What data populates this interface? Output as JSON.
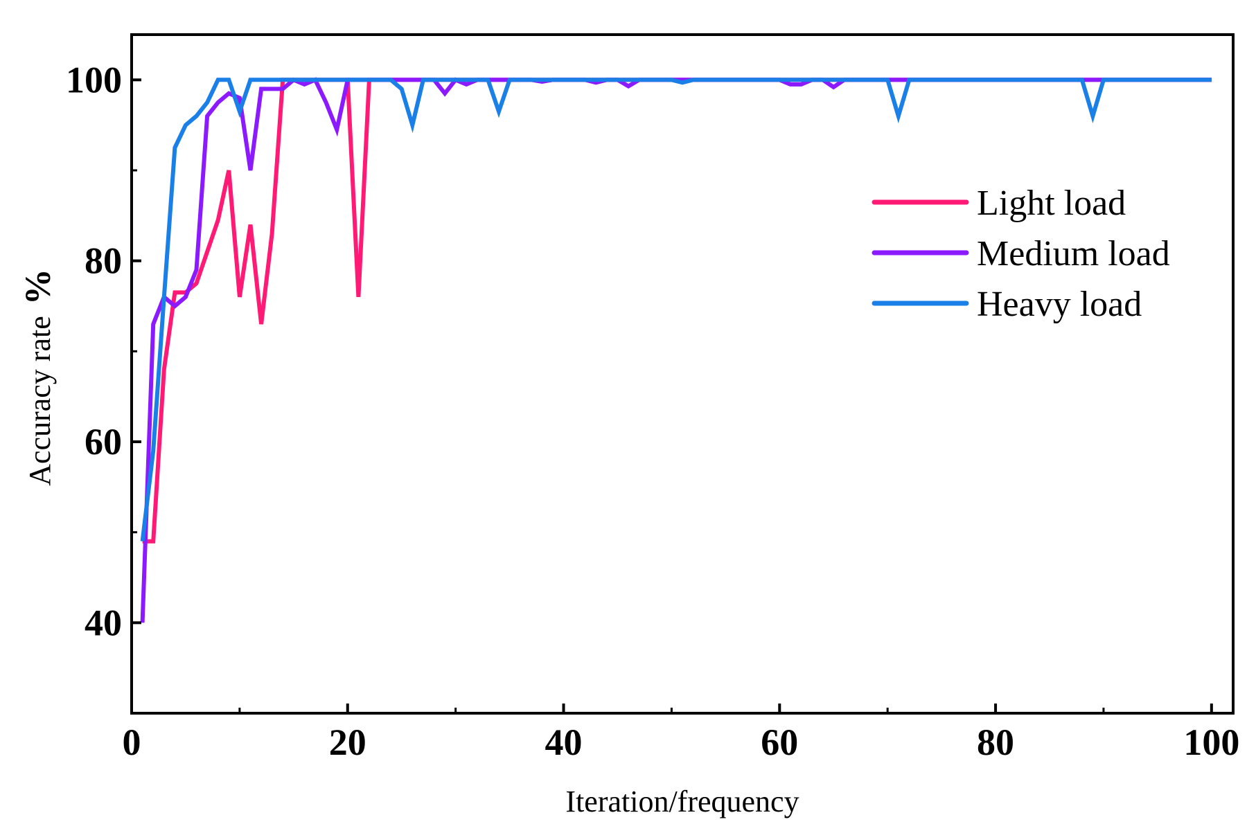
{
  "chart_data": {
    "type": "line",
    "title": "",
    "xlabel": "Iteration/frequency",
    "ylabel": "Accuracy rate",
    "ylabel_unit": "%",
    "xlim": [
      0,
      102
    ],
    "ylim": [
      30,
      105
    ],
    "xticks": [
      0,
      20,
      40,
      60,
      80,
      100
    ],
    "yticks": [
      40,
      60,
      80,
      100
    ],
    "legend_position": "right",
    "series": [
      {
        "name": "Light load",
        "color": "#ff1a75",
        "x": [
          1,
          2,
          3,
          4,
          5,
          6,
          7,
          8,
          9,
          10,
          11,
          12,
          13,
          14,
          15,
          16,
          17,
          18,
          19,
          20,
          21,
          22,
          23,
          24,
          25,
          26,
          27,
          28,
          29,
          30,
          31,
          32,
          33,
          34,
          35,
          36,
          37,
          38,
          39,
          40,
          41,
          42,
          43,
          44,
          45,
          46,
          47,
          48,
          49,
          50,
          51,
          52,
          53,
          54,
          55,
          56,
          57,
          58,
          59,
          60,
          61,
          62,
          63,
          64,
          65,
          66,
          67,
          68,
          69,
          70,
          71,
          72,
          73,
          74,
          75,
          76,
          77,
          78,
          79,
          80,
          81,
          82,
          83,
          84,
          85,
          86,
          87,
          88,
          89,
          90,
          91,
          92,
          93,
          94,
          95,
          96,
          97,
          98,
          99,
          100
        ],
        "y": [
          49,
          49,
          68,
          76.5,
          76.5,
          77.5,
          81,
          84.5,
          90,
          76,
          84,
          73,
          83,
          100,
          100,
          100,
          100,
          100,
          100,
          100,
          76,
          100,
          100,
          100,
          100,
          100,
          100,
          100,
          100,
          100,
          100,
          100,
          100,
          100,
          100,
          100,
          100,
          100,
          100,
          100,
          100,
          100,
          100,
          100,
          100,
          100,
          100,
          100,
          100,
          100,
          100,
          100,
          100,
          100,
          100,
          100,
          100,
          100,
          100,
          100,
          100,
          100,
          100,
          100,
          100,
          100,
          100,
          100,
          100,
          100,
          100,
          100,
          100,
          100,
          100,
          100,
          100,
          100,
          100,
          100,
          100,
          100,
          100,
          100,
          100,
          100,
          100,
          100,
          100,
          100,
          100,
          100,
          100,
          100,
          100,
          100,
          100,
          100,
          100,
          100
        ]
      },
      {
        "name": "Medium load",
        "color": "#8c1aff",
        "x": [
          1,
          2,
          3,
          4,
          5,
          6,
          7,
          8,
          9,
          10,
          11,
          12,
          13,
          14,
          15,
          16,
          17,
          18,
          19,
          20,
          21,
          22,
          23,
          24,
          25,
          26,
          27,
          28,
          29,
          30,
          31,
          32,
          33,
          34,
          35,
          36,
          37,
          38,
          39,
          40,
          41,
          42,
          43,
          44,
          45,
          46,
          47,
          48,
          49,
          50,
          51,
          52,
          53,
          54,
          55,
          56,
          57,
          58,
          59,
          60,
          61,
          62,
          63,
          64,
          65,
          66,
          67,
          68,
          69,
          70,
          71,
          72,
          73,
          74,
          75,
          76,
          77,
          78,
          79,
          80,
          81,
          82,
          83,
          84,
          85,
          86,
          87,
          88,
          89,
          90,
          91,
          92,
          93,
          94,
          95,
          96,
          97,
          98,
          99,
          100
        ],
        "y": [
          40,
          73,
          76,
          75,
          76,
          79,
          96,
          97.5,
          98.5,
          98,
          90,
          99,
          99,
          99,
          100,
          99.5,
          100,
          97.5,
          94.5,
          100,
          100,
          100,
          100,
          100,
          100,
          100,
          100,
          100,
          98.5,
          100,
          99.5,
          100,
          100,
          100,
          100,
          100,
          100,
          99.8,
          100,
          100,
          100,
          100,
          99.7,
          100,
          100,
          99.3,
          100,
          100,
          100,
          100,
          100,
          100,
          100,
          100,
          100,
          100,
          100,
          100,
          100,
          100,
          99.5,
          99.5,
          100,
          100,
          99.2,
          100,
          100,
          100,
          100,
          100,
          100,
          100,
          100,
          100,
          100,
          100,
          100,
          100,
          100,
          100,
          100,
          100,
          100,
          100,
          100,
          100,
          100,
          100,
          100,
          100,
          100,
          100,
          100,
          100,
          100,
          100,
          100,
          100,
          100,
          100
        ]
      },
      {
        "name": "Heavy load",
        "color": "#1a7fe6",
        "x": [
          1,
          2,
          3,
          4,
          5,
          6,
          7,
          8,
          9,
          10,
          11,
          12,
          13,
          14,
          15,
          16,
          17,
          18,
          19,
          20,
          21,
          22,
          23,
          24,
          25,
          26,
          27,
          28,
          29,
          30,
          31,
          32,
          33,
          34,
          35,
          36,
          37,
          38,
          39,
          40,
          41,
          42,
          43,
          44,
          45,
          46,
          47,
          48,
          49,
          50,
          51,
          52,
          53,
          54,
          55,
          56,
          57,
          58,
          59,
          60,
          61,
          62,
          63,
          64,
          65,
          66,
          67,
          68,
          69,
          70,
          71,
          72,
          73,
          74,
          75,
          76,
          77,
          78,
          79,
          80,
          81,
          82,
          83,
          84,
          85,
          86,
          87,
          88,
          89,
          90,
          91,
          92,
          93,
          94,
          95,
          96,
          97,
          98,
          99,
          100
        ],
        "y": [
          49,
          59,
          76,
          92.5,
          95,
          96,
          97.5,
          100,
          100,
          96.5,
          100,
          100,
          100,
          100,
          100,
          100,
          100,
          100,
          100,
          100,
          100,
          100,
          100,
          100,
          99,
          95,
          100,
          100,
          100,
          100,
          100,
          100,
          100,
          96.5,
          100,
          100,
          100,
          100,
          100,
          100,
          100,
          100,
          100,
          100,
          100,
          100,
          100,
          100,
          100,
          100,
          99.7,
          100,
          100,
          100,
          100,
          100,
          100,
          100,
          100,
          100,
          100,
          100,
          100,
          100,
          100,
          100,
          100,
          100,
          100,
          100,
          96,
          100,
          100,
          100,
          100,
          100,
          100,
          100,
          100,
          100,
          100,
          100,
          100,
          100,
          100,
          100,
          100,
          100,
          96,
          100,
          100,
          100,
          100,
          100,
          100,
          100,
          100,
          100,
          100,
          100
        ]
      }
    ]
  }
}
